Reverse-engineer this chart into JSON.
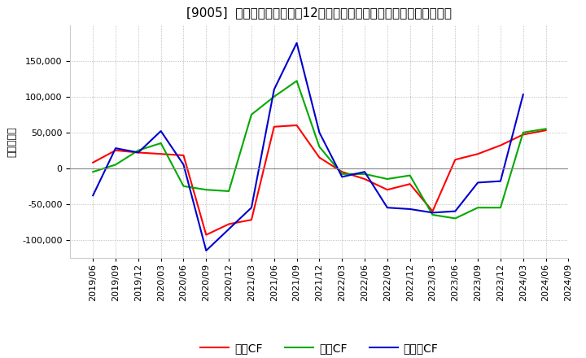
{
  "title": "[9005]  キャッシュフローの12か月移動合計の対前年同期増減額の推移",
  "ylabel": "（百万円）",
  "background_color": "#ffffff",
  "plot_bg_color": "#ffffff",
  "grid_color": "#aaaaaa",
  "ylim": [
    -125000,
    200000
  ],
  "yticks": [
    -100000,
    -50000,
    0,
    50000,
    100000,
    150000
  ],
  "dates": [
    "2019/06",
    "2019/09",
    "2019/12",
    "2020/03",
    "2020/06",
    "2020/09",
    "2020/12",
    "2021/03",
    "2021/06",
    "2021/09",
    "2021/12",
    "2022/03",
    "2022/06",
    "2022/09",
    "2022/12",
    "2023/03",
    "2023/06",
    "2023/09",
    "2023/12",
    "2024/03",
    "2024/06",
    "2024/09"
  ],
  "operating_cf": [
    8000,
    25000,
    22000,
    20000,
    18000,
    -93000,
    -78000,
    -72000,
    58000,
    60000,
    15000,
    -5000,
    -15000,
    -30000,
    -22000,
    -60000,
    12000,
    20000,
    32000,
    47000,
    53000,
    null
  ],
  "investing_cf": [
    -5000,
    5000,
    25000,
    35000,
    -25000,
    -30000,
    -32000,
    75000,
    100000,
    122000,
    30000,
    -8000,
    -8000,
    -15000,
    -10000,
    -65000,
    -70000,
    -55000,
    -55000,
    50000,
    55000,
    null
  ],
  "free_cf": [
    -38000,
    28000,
    22000,
    52000,
    5000,
    -115000,
    -85000,
    -55000,
    110000,
    175000,
    50000,
    -12000,
    -5000,
    -55000,
    -57000,
    -62000,
    -60000,
    -20000,
    -18000,
    103000,
    null,
    null
  ],
  "operating_color": "#ff0000",
  "investing_color": "#00aa00",
  "free_color": "#0000cc",
  "legend_labels": [
    "営業CF",
    "投資CF",
    "フリーCF"
  ],
  "title_fontsize": 11,
  "label_fontsize": 9,
  "tick_fontsize": 8
}
